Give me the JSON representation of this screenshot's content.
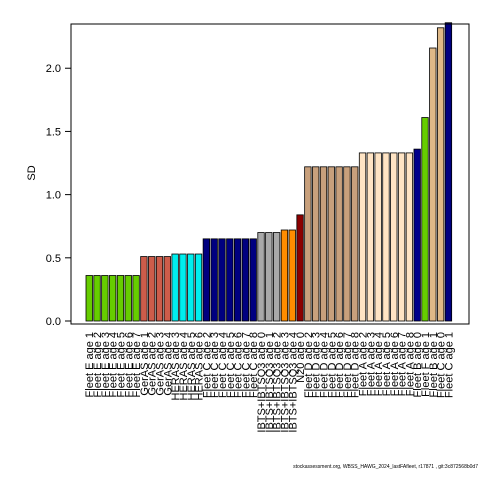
{
  "chart_data": {
    "type": "bar",
    "ylabel": "SD",
    "ylim": [
      0,
      2.35
    ],
    "y_ticks": [
      "0.0",
      "0.5",
      "1.0",
      "1.5",
      "2.0"
    ],
    "categories": [
      "Fleet E age 1",
      "Fleet E age 2",
      "Fleet E age 3",
      "Fleet E age 4",
      "Fleet E age 5",
      "Fleet E age 6",
      "Fleet E age 7",
      "GerAS age 1",
      "GerAS age 2",
      "GerAS age 3",
      "GerAS age 4",
      "HERAS age 3",
      "HERAS age 4",
      "HERAS age 5",
      "HERAS age 6",
      "Fleet C age 2",
      "Fleet C age 3",
      "Fleet C age 4",
      "Fleet C age 5",
      "Fleet C age 6",
      "Fleet C age 7",
      "Fleet C age 8",
      "IBTS+IBTSQ3 age 0",
      "IBTS+IBTSQ3 age 1",
      "IBTS+IBTSQ3 age 2",
      "IBTS+IBTSQ3 age 3",
      "IBTS+IBTSQ3 age 4",
      "N20 age 0",
      "Fleet D age 2",
      "Fleet D age 3",
      "Fleet D age 4",
      "Fleet D age 5",
      "Fleet D age 6",
      "Fleet D age 7",
      "Fleet D age 8",
      "Fleet A age 2",
      "Fleet A age 3",
      "Fleet A age 4",
      "Fleet A age 5",
      "Fleet A age 6",
      "Fleet A age 7",
      "Fleet A age 8",
      "Fleet B age 0",
      "Fleet F age 1",
      "Fleet B age 1",
      "Fleet C age 0",
      "Fleet C age 1"
    ],
    "values": [
      0.36,
      0.36,
      0.36,
      0.36,
      0.36,
      0.36,
      0.36,
      0.51,
      0.51,
      0.51,
      0.51,
      0.53,
      0.53,
      0.53,
      0.53,
      0.65,
      0.65,
      0.65,
      0.65,
      0.65,
      0.65,
      0.65,
      0.7,
      0.7,
      0.7,
      0.72,
      0.72,
      0.84,
      1.22,
      1.22,
      1.22,
      1.22,
      1.22,
      1.22,
      1.22,
      1.33,
      1.33,
      1.33,
      1.33,
      1.33,
      1.33,
      1.33,
      1.36,
      1.61,
      2.16,
      2.32,
      2.36
    ],
    "colors": [
      "#66cd00",
      "#66cd00",
      "#66cd00",
      "#66cd00",
      "#66cd00",
      "#66cd00",
      "#66cd00",
      "#cd5c4a",
      "#cd5c4a",
      "#cd5c4a",
      "#cd5c4a",
      "#00eeee",
      "#00eeee",
      "#00eeee",
      "#00eeee",
      "#000080",
      "#000080",
      "#000080",
      "#000080",
      "#000080",
      "#000080",
      "#000080",
      "#a9a9a9",
      "#a9a9a9",
      "#a9a9a9",
      "#ff8c00",
      "#ff8c00",
      "#8b0000",
      "#c8a07c",
      "#c8a07c",
      "#c8a07c",
      "#c8a07c",
      "#c8a07c",
      "#c8a07c",
      "#c8a07c",
      "#ffe4c4",
      "#ffe4c4",
      "#ffe4c4",
      "#ffe4c4",
      "#ffe4c4",
      "#ffe4c4",
      "#ffe4c4",
      "#00008b",
      "#66cd00",
      "#deb887",
      "#deb887",
      "#000080"
    ],
    "grid": false,
    "legend": "none"
  },
  "footer": "stockassessment.org, WBSS_HAWG_2024_lastFAfleet, r17871 , git:3c872568b0d7"
}
